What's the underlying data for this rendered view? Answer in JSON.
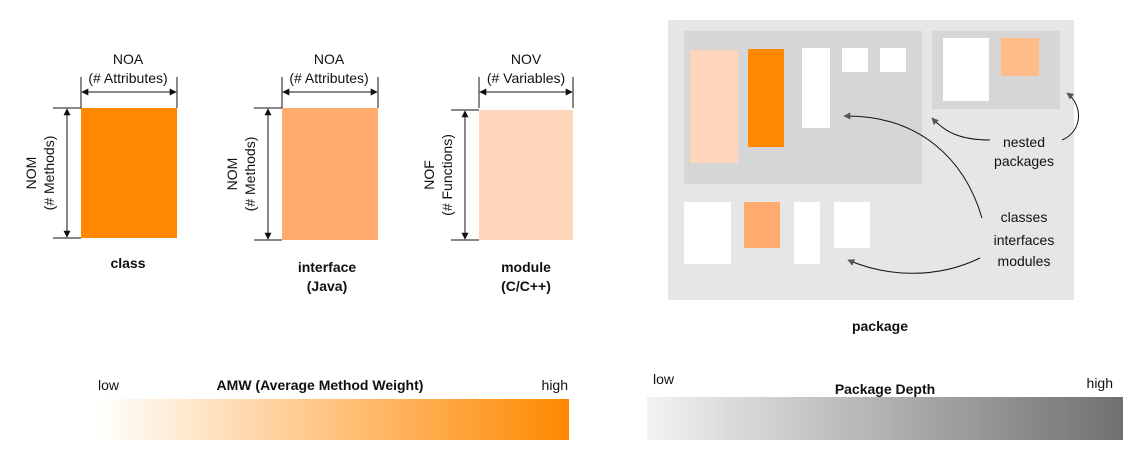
{
  "colors": {
    "class_fill": "#ff8800",
    "interface_fill": "#ffaa6e",
    "module_fill": "#ffd6bb",
    "package_bg": "#e6e6e6",
    "nested_pkg_bg": "#d6d6d6",
    "white_box": "#ffffff",
    "amw_high": "#ff8800",
    "depth_low": "#f2f2f2",
    "depth_high": "#707070"
  },
  "glyphs": [
    {
      "id": "class",
      "caption": [
        "class"
      ],
      "width_metric": "NOA",
      "width_sub": "(# Attributes)",
      "height_metric": "NOM",
      "height_sub": "(# Methods)"
    },
    {
      "id": "interface",
      "caption": [
        "interface",
        "(Java)"
      ],
      "width_metric": "NOA",
      "width_sub": "(# Attributes)",
      "height_metric": "NOM",
      "height_sub": "(# Methods)"
    },
    {
      "id": "module",
      "caption": [
        "module",
        "(C/C++)"
      ],
      "width_metric": "NOV",
      "width_sub": "(# Variables)",
      "height_metric": "NOF",
      "height_sub": "(# Functions)"
    }
  ],
  "package": {
    "caption": "package",
    "annotations": {
      "nested": [
        "nested",
        "packages"
      ],
      "items": [
        "classes",
        "interfaces",
        "modules"
      ]
    }
  },
  "legends": {
    "amw": {
      "title": "AMW (Average Method Weight)",
      "low": "low",
      "high": "high"
    },
    "depth": {
      "title": "Package Depth",
      "low": "low",
      "high": "high"
    }
  }
}
